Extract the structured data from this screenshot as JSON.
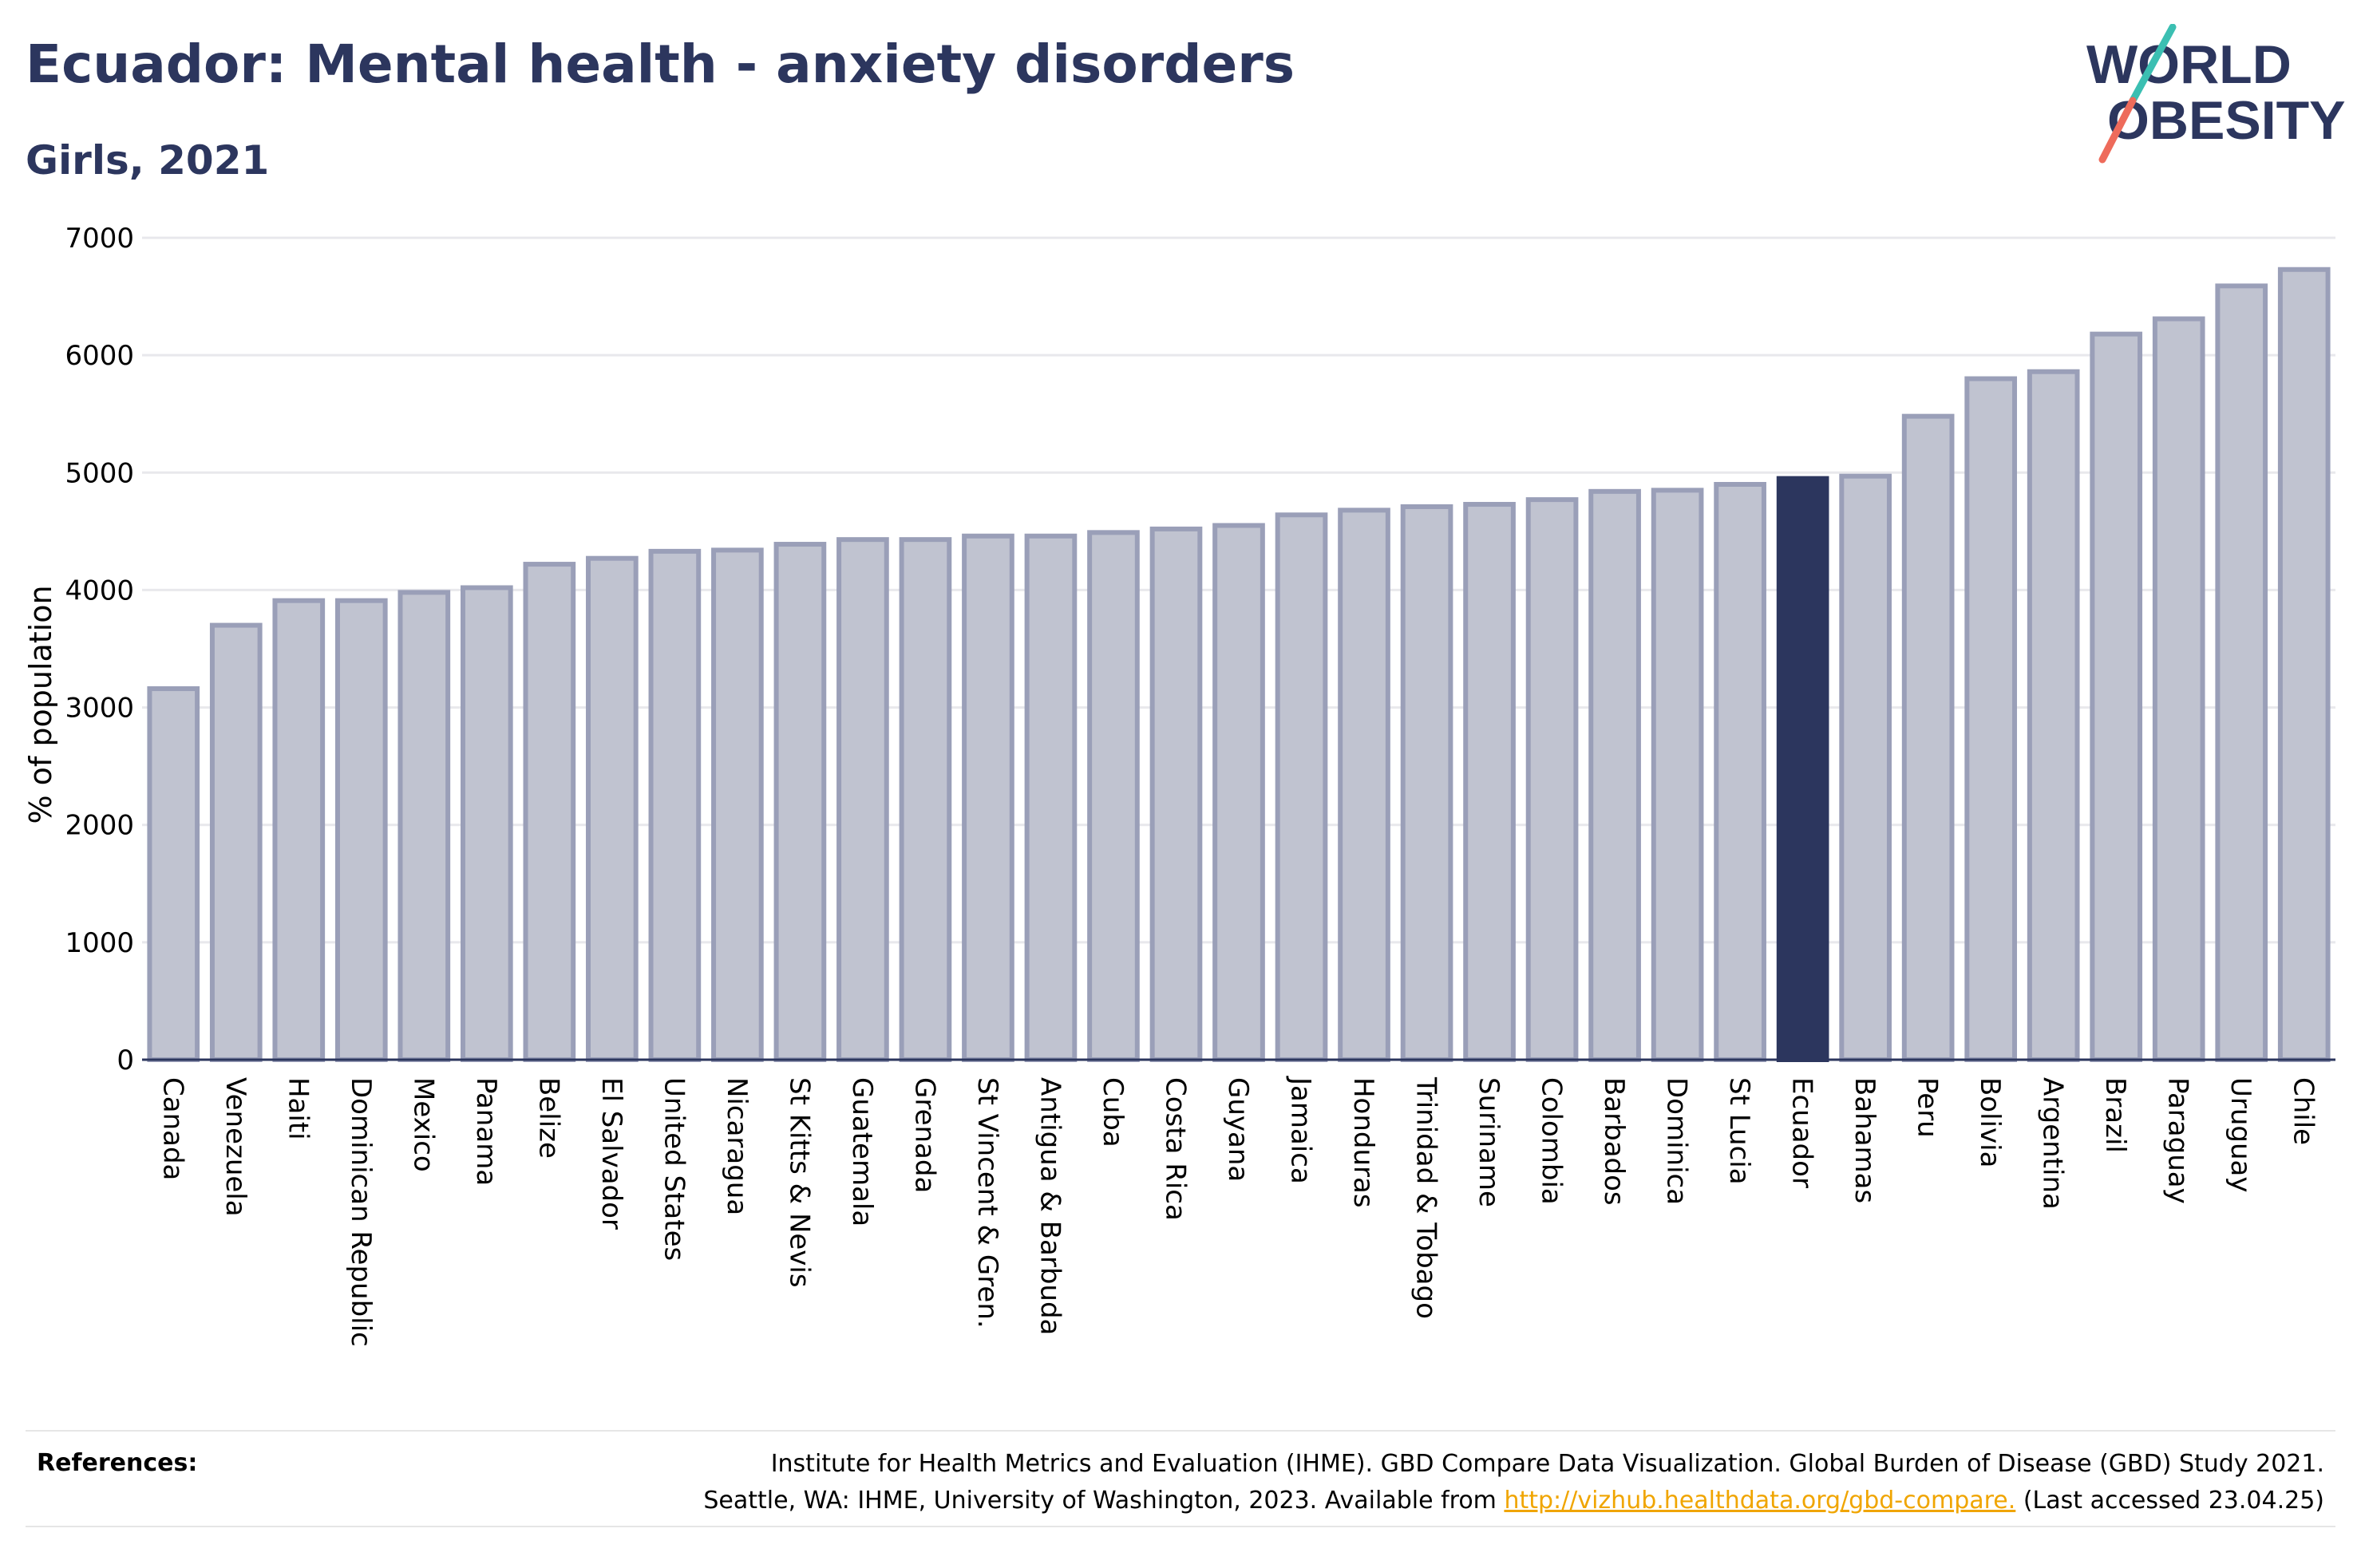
{
  "title": "Ecuador: Mental health - anxiety disorders",
  "subtitle": "Girls, 2021",
  "logo": {
    "line1": "WORLD",
    "line2": "OBESITY",
    "colors": {
      "text": "#2c365e",
      "slash_teal": "#3bbfb2",
      "slash_coral": "#ee6b5b"
    }
  },
  "colors": {
    "bar_fill": "#c0c3d0",
    "bar_stroke": "#9a9fb8",
    "highlight_fill": "#2c365e",
    "grid": "#e8e8ec",
    "axis": "#2c365e",
    "text": "#2c365e",
    "link": "#f0a500"
  },
  "chart_data": {
    "type": "bar",
    "ylabel": "% of population",
    "xlabel": "",
    "ylim": [
      0,
      7000
    ],
    "yticks": [
      0,
      1000,
      2000,
      3000,
      4000,
      5000,
      6000,
      7000
    ],
    "grid": true,
    "highlight": "Ecuador",
    "categories": [
      "Canada",
      "Venezuela",
      "Haiti",
      "Dominican Republic",
      "Mexico",
      "Panama",
      "Belize",
      "El Salvador",
      "United States",
      "Nicaragua",
      "St Kitts & Nevis",
      "Guatemala",
      "Grenada",
      "St Vincent & Gren.",
      "Antigua & Barbuda",
      "Cuba",
      "Costa Rica",
      "Guyana",
      "Jamaica",
      "Honduras",
      "Trinidad & Tobago",
      "Suriname",
      "Colombia",
      "Barbados",
      "Dominica",
      "St Lucia",
      "Ecuador",
      "Bahamas",
      "Peru",
      "Bolivia",
      "Argentina",
      "Brazil",
      "Paraguay",
      "Uruguay",
      "Chile"
    ],
    "values": [
      3160,
      3700,
      3910,
      3910,
      3980,
      4020,
      4220,
      4270,
      4330,
      4340,
      4390,
      4430,
      4430,
      4460,
      4460,
      4490,
      4520,
      4550,
      4640,
      4680,
      4710,
      4730,
      4770,
      4840,
      4850,
      4900,
      4950,
      4970,
      5480,
      5800,
      5860,
      6180,
      6310,
      6590,
      6730
    ]
  },
  "references": {
    "label": "References:",
    "line1": "Institute for Health Metrics and Evaluation (IHME). GBD Compare Data Visualization. Global Burden of Disease (GBD) Study 2021.",
    "line2_before": "Seattle, WA: IHME, University of Washington, 2023. Available from ",
    "link": "http://vizhub.healthdata.org/gbd-compare.",
    "line2_after": " (Last accessed 23.04.25)"
  }
}
